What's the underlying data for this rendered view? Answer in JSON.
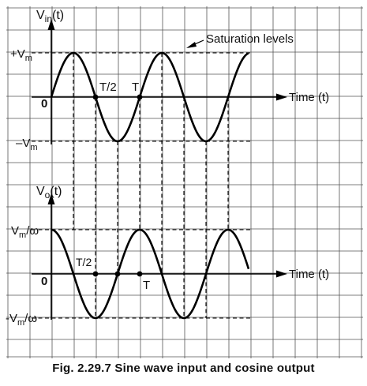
{
  "figure": {
    "caption": "Fig. 2.29.7 Sine wave input and cosine output",
    "annotation": "Saturation levels",
    "input_plot": {
      "y_label_main": "V",
      "y_label_sub": "in",
      "y_label_suffix": "(t)",
      "pos_level_main": "+V",
      "pos_level_sub": "m",
      "neg_level_main": "–V",
      "neg_level_sub": "m",
      "origin_label": "0",
      "half_period_label": "T/2",
      "period_label": "T",
      "x_label": "Time (t)"
    },
    "output_plot": {
      "y_label_main": "V",
      "y_label_sub": "o",
      "y_label_suffix": "(t)",
      "pos_level_main": "V",
      "pos_level_sub": "m",
      "pos_level_suffix": "/ω",
      "neg_level_main": "-V",
      "neg_level_sub": "m",
      "neg_level_suffix": "/ω",
      "origin_label": "0",
      "half_period_label": "T/2",
      "period_label": "T",
      "x_label": "Time (t)"
    }
  }
}
